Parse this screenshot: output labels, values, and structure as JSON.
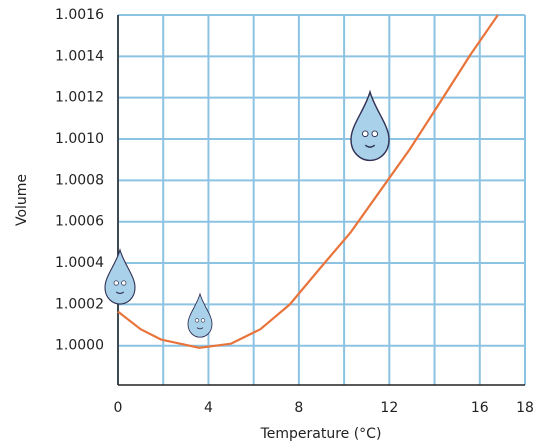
{
  "chart_data": {
    "type": "line",
    "x_label": "Temperature (°C)",
    "y_label": "Volume",
    "x": [
      0,
      1,
      1.9,
      3.6,
      5,
      6.3,
      7.6,
      8.9,
      10.3,
      11.6,
      12.9,
      14.2,
      15.6,
      16.8
    ],
    "series": [
      {
        "color": "#e8743b",
        "values": [
          1.000165,
          1.00008,
          1.00003,
          0.99999,
          1.00001,
          1.00008,
          1.0002,
          1.00037,
          1.00055,
          1.00075,
          1.00095,
          1.00117,
          1.00141,
          1.0016
        ]
      }
    ],
    "xlim": [
      0,
      18
    ],
    "xticks": [
      0,
      4,
      8,
      12,
      16,
      18
    ],
    "x_minor_ticks": [
      2,
      6,
      10,
      14
    ],
    "ylim": [
      0.99981,
      1.0016
    ],
    "yticks": [
      {
        "value": 1,
        "label": "1.0000"
      },
      1.0002,
      1.0004,
      1.0006,
      1.0008,
      {
        "value": 1.001,
        "label": "1.0010"
      },
      1.0012,
      1.0014,
      1.0016
    ],
    "grid": true,
    "grid_color": "#8cc3e3"
  }
}
